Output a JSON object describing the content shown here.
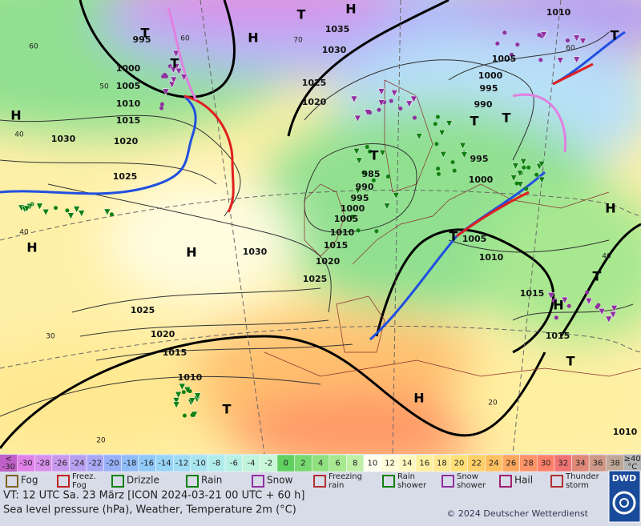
{
  "map": {
    "isobar_labels": [
      "995",
      "1000",
      "1005",
      "1010",
      "1015",
      "1020",
      "1030",
      "1025",
      "1035",
      "1030",
      "1025",
      "1020",
      "985",
      "990",
      "995",
      "1000",
      "1005",
      "1010",
      "1015",
      "1020",
      "1025",
      "1030",
      "1025",
      "1020",
      "1015",
      "1010",
      "1010",
      "1005",
      "1000",
      "995",
      "990",
      "995",
      "1000",
      "1005",
      "1010",
      "1015",
      "1015",
      "1010"
    ],
    "temperature_labels": [
      "60",
      "50",
      "40",
      "40",
      "30",
      "20",
      "60",
      "70",
      "60",
      "40",
      "20"
    ],
    "pressure_centers": [
      "H",
      "H",
      "H",
      "H",
      "T",
      "T",
      "H",
      "T",
      "T",
      "T",
      "T",
      "T",
      "H",
      "T",
      "H",
      "T",
      "H",
      "T",
      "T"
    ]
  },
  "scale": {
    "under_label": [
      "<",
      "-30"
    ],
    "under_color": "#c060c8",
    "values": [
      -30,
      -28,
      -26,
      -24,
      -22,
      -20,
      -18,
      -16,
      -14,
      -12,
      -10,
      -8,
      -6,
      -4,
      -2,
      0,
      2,
      4,
      6,
      8,
      10,
      12,
      14,
      16,
      18,
      20,
      22,
      24,
      26,
      28,
      30,
      32,
      34,
      36,
      38
    ],
    "colors": [
      "#e080e8",
      "#d890ec",
      "#c898ec",
      "#b8a0f0",
      "#a8a8f4",
      "#98b0f8",
      "#90bcf8",
      "#90c8f8",
      "#98d4f8",
      "#a0dcf4",
      "#a8e4f0",
      "#b0ecec",
      "#b8f0e4",
      "#c0f4dc",
      "#c8f8d8",
      "#60d060",
      "#78d870",
      "#90e080",
      "#a8e890",
      "#c0f0a8",
      "#fffff0",
      "#fffcd8",
      "#fff8c0",
      "#fff0a0",
      "#ffe890",
      "#ffe078",
      "#ffd068",
      "#ffc060",
      "#ffa860",
      "#ff9468",
      "#ff8068",
      "#f07474",
      "#e08878",
      "#d09888",
      "#c0a898"
    ],
    "over_label": [
      "≥40",
      "°C"
    ],
    "over_color": "#b4b4b4"
  },
  "legend": [
    [
      "Fog"
    ],
    [
      "Freez.",
      "Fog"
    ],
    [
      "Drizzle"
    ],
    [
      "Rain"
    ],
    [
      "Snow"
    ],
    [
      "Freezing",
      "rain"
    ],
    [
      "Rain",
      "shower"
    ],
    [
      "Snow",
      "shower"
    ],
    [
      "Hail"
    ],
    [
      "Thunder",
      "storm"
    ]
  ],
  "footer": {
    "valid_time": "VT: 12 UTC Sa.  23 März [ICON 2024-03-21  00 UTC + 60 h]",
    "description": "Sea level pressure (hPa), Weather, Temperature 2m (°C)",
    "copyright": "© 2024 Deutscher Wetterdienst",
    "logo": "DWD"
  }
}
